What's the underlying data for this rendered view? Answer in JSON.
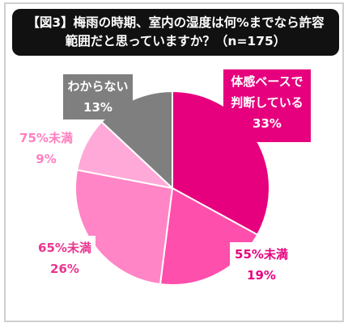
{
  "title": {
    "line1": "【図3】梅雨の時期、室内の湿度は何%までなら許容",
    "line2": "範囲だと思っていますか？（n=175）"
  },
  "chart_data": {
    "type": "pie",
    "slices": [
      {
        "label_lines": [
          "体感ベースで",
          "判断している"
        ],
        "value": 33,
        "value_label": "33%",
        "color": "#e6007e"
      },
      {
        "label_lines": [
          "55%未満"
        ],
        "value": 19,
        "value_label": "19%",
        "color": "#ff4fac"
      },
      {
        "label_lines": [
          "65%未満"
        ],
        "value": 26,
        "value_label": "26%",
        "color": "#ff85c6"
      },
      {
        "label_lines": [
          "75%未満"
        ],
        "value": 9,
        "value_label": "9%",
        "color": "#ffa9d8"
      },
      {
        "label_lines": [
          "わからない"
        ],
        "value": 13,
        "value_label": "13%",
        "color": "#7f7f7f"
      }
    ]
  }
}
